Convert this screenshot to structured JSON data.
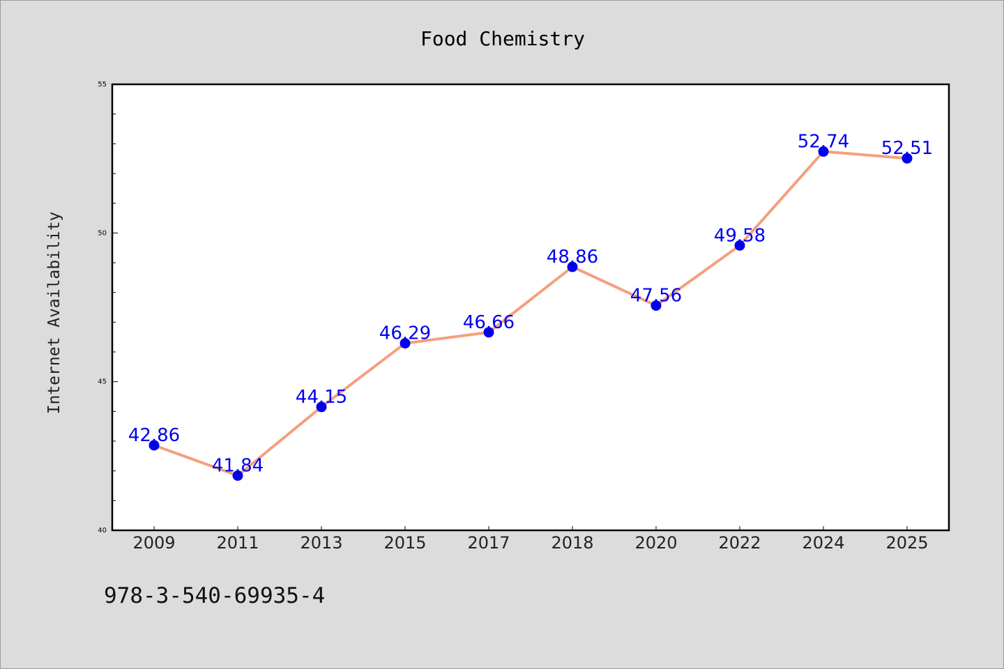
{
  "chart_data": {
    "type": "line",
    "title": "Food Chemistry",
    "xlabel": "",
    "ylabel": "Internet Availability",
    "categories": [
      "2009",
      "2011",
      "2013",
      "2015",
      "2017",
      "2018",
      "2020",
      "2022",
      "2024",
      "2025"
    ],
    "series": [
      {
        "values": [
          42.86,
          41.84,
          44.15,
          46.29,
          46.66,
          48.86,
          47.56,
          49.58,
          52.74,
          52.51
        ]
      }
    ],
    "data_labels": [
      "42.86",
      "41.84",
      "44.15",
      "46.29",
      "46.66",
      "48.86",
      "47.56",
      "49.58",
      "52.74",
      "52.51"
    ],
    "ylim": [
      40,
      55
    ],
    "yticks": [
      40,
      45,
      50,
      55
    ],
    "yticks_labels": [
      "40",
      "45",
      "50",
      "55"
    ],
    "grid": false,
    "legend": "none",
    "colors": {
      "line": "#f4a07e",
      "marker": "#0000ee",
      "data_label": "#0000ee",
      "background": "#dcdcdc",
      "plot_background": "#ffffff"
    }
  },
  "footer": {
    "text": "978-3-540-69935-4"
  }
}
